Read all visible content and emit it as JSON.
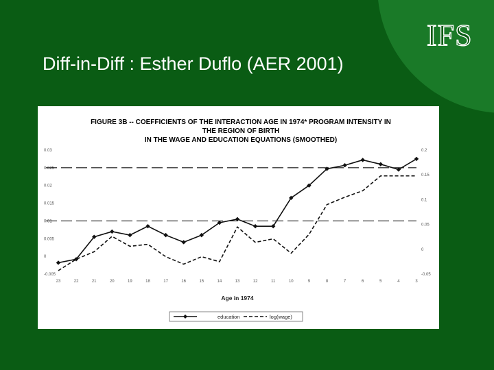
{
  "slide": {
    "title": "Diff-in-Diff : Esther Duflo (AER 2001)",
    "logo_text": "IFS",
    "background_color": "#0a5c14"
  },
  "chart_data": {
    "type": "line",
    "title_lines": [
      "FIGURE 3B -- COEFFICIENTS OF THE INTERACTION AGE IN 1974* PROGRAM INTENSITY IN",
      "THE REGION OF BIRTH",
      "IN THE WAGE AND EDUCATION EQUATIONS (SMOOTHED)"
    ],
    "xlabel": "Age in 1974",
    "categories": [
      "23",
      "22",
      "21",
      "20",
      "19",
      "18",
      "17",
      "16",
      "15",
      "14",
      "13",
      "12",
      "11",
      "10",
      "9",
      "8",
      "7",
      "6",
      "5",
      "4",
      "3"
    ],
    "y_left": {
      "lim": [
        -0.005,
        0.03
      ],
      "ticks": [
        -0.005,
        0,
        0.005,
        0.01,
        0.015,
        0.02,
        0.025,
        0.03
      ],
      "tick_labels": [
        "-0.005",
        "0",
        "0.005",
        "0.01",
        "0.015",
        "0.02",
        "0.025",
        "0.03"
      ]
    },
    "y_right": {
      "lim": [
        -0.05,
        0.2
      ],
      "ticks": [
        -0.05,
        0,
        0.05,
        0.1,
        0.15,
        0.2
      ],
      "tick_labels": [
        "-0.05",
        "0",
        "0.05",
        "0.1",
        "0.15",
        "0.2"
      ]
    },
    "reference_lines": [
      {
        "axis": "left",
        "value": 0.025
      },
      {
        "axis": "left",
        "value": 0.01
      }
    ],
    "series": [
      {
        "name": "education",
        "axis": "left",
        "style": "solid-diamond",
        "values": [
          -0.0018,
          -0.0008,
          0.0055,
          0.007,
          0.006,
          0.0085,
          0.006,
          0.004,
          0.006,
          0.0095,
          0.0105,
          0.0085,
          0.0085,
          0.0165,
          0.02,
          0.0247,
          0.0257,
          0.0272,
          0.026,
          0.0245,
          0.0275
        ]
      },
      {
        "name": "log(wage)",
        "axis": "right",
        "style": "dashed",
        "values": [
          -0.043,
          -0.02,
          -0.005,
          0.026,
          0.006,
          0.01,
          -0.015,
          -0.03,
          -0.015,
          -0.025,
          0.045,
          0.014,
          0.021,
          -0.008,
          0.03,
          0.09,
          0.105,
          0.118,
          0.148,
          0.148,
          0.148
        ]
      }
    ],
    "legend": {
      "position": "bottom-center",
      "entries": [
        "education",
        "log(wage)"
      ]
    },
    "grid": false
  }
}
